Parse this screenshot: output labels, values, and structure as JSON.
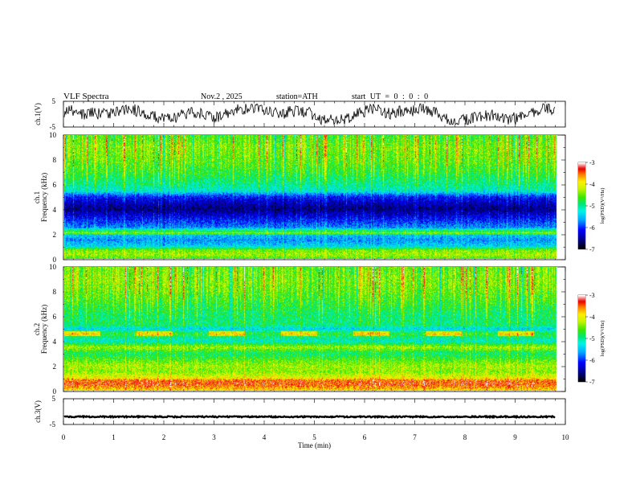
{
  "header": {
    "title": "VLF Spectra",
    "date": "Nov.2 , 2025",
    "station": "station=ATH",
    "start": "start UT = 0 : 0 : 0"
  },
  "chart_data": {
    "type": "heatmap",
    "xlabel": "Time (min)",
    "xlim": [
      0,
      10
    ],
    "xticks": [
      "0",
      "1",
      "2",
      "3",
      "4",
      "5",
      "6",
      "7",
      "8",
      "9",
      "10"
    ],
    "data_end_min": 9.8,
    "panels": [
      {
        "id": "ch1-waveform",
        "kind": "waveform",
        "ylabel": "ch.1(V)",
        "ylim": [
          -5,
          5
        ],
        "yticks": [
          "5",
          "-5"
        ],
        "description_level": "noisy signal roughly between -4 and 4 V"
      },
      {
        "id": "ch1-spectrogram",
        "kind": "spectrogram",
        "channel_label": "ch.1",
        "ylabel": "Frequency (kHz)",
        "ylim": [
          0,
          10
        ],
        "yticks": [
          "0",
          "2",
          "4",
          "6",
          "8",
          "10"
        ],
        "colorbar": {
          "label": "log(PSD)(V²/Hz)",
          "range": [
            -7,
            -3
          ],
          "ticks": [
            "-3",
            "-4",
            "-5",
            "-6",
            "-7"
          ]
        },
        "profile_log_psd": [
          [
            0.0,
            -4.6
          ],
          [
            0.3,
            -4.3
          ],
          [
            0.7,
            -4.5
          ],
          [
            1.0,
            -5.4
          ],
          [
            1.5,
            -5.7
          ],
          [
            2.0,
            -5.4
          ],
          [
            2.2,
            -4.6
          ],
          [
            2.5,
            -5.7
          ],
          [
            3.0,
            -6.0
          ],
          [
            3.5,
            -6.3
          ],
          [
            4.0,
            -6.6
          ],
          [
            4.5,
            -6.4
          ],
          [
            5.0,
            -6.1
          ],
          [
            5.3,
            -5.6
          ],
          [
            5.5,
            -5.2
          ],
          [
            6.0,
            -5.0
          ],
          [
            7.0,
            -4.7
          ],
          [
            8.0,
            -4.5
          ],
          [
            9.0,
            -4.4
          ],
          [
            10.0,
            -4.6
          ]
        ]
      },
      {
        "id": "ch2-spectrogram",
        "kind": "spectrogram",
        "channel_label": "ch.2",
        "ylabel": "Frequency (kHz)",
        "ylim": [
          0,
          10
        ],
        "yticks": [
          "0",
          "2",
          "4",
          "6",
          "8",
          "10"
        ],
        "colorbar": {
          "label": "log(PSD)(V²/Hz)",
          "range": [
            -7,
            -3
          ],
          "ticks": [
            "-3",
            "-4",
            "-5",
            "-6",
            "-7"
          ]
        },
        "profile_log_psd": [
          [
            0.0,
            -3.9
          ],
          [
            0.5,
            -3.4
          ],
          [
            0.8,
            -3.5
          ],
          [
            1.0,
            -4.0
          ],
          [
            1.5,
            -4.4
          ],
          [
            2.0,
            -4.3
          ],
          [
            2.5,
            -4.6
          ],
          [
            3.0,
            -4.9
          ],
          [
            3.5,
            -4.3
          ],
          [
            4.0,
            -5.2
          ],
          [
            4.6,
            -4.7
          ],
          [
            5.0,
            -5.4
          ],
          [
            5.3,
            -4.9
          ],
          [
            6.0,
            -4.9
          ],
          [
            7.0,
            -4.7
          ],
          [
            8.0,
            -4.5
          ],
          [
            9.0,
            -4.4
          ],
          [
            10.0,
            -4.5
          ]
        ]
      },
      {
        "id": "ch3-waveform",
        "kind": "waveform",
        "ylabel": "ch.3(V)",
        "ylim": [
          -5,
          5
        ],
        "yticks": [
          "5",
          "-5"
        ],
        "description_level": "flat trace near -2 V"
      }
    ]
  }
}
